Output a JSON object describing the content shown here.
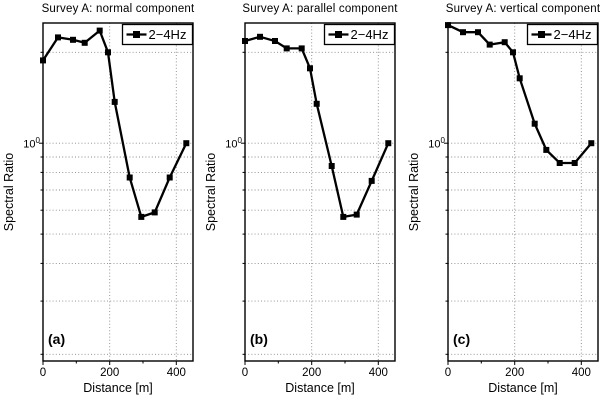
{
  "figure": {
    "background_color": "#ffffff",
    "line_color": "#000000",
    "grid_color": "#8a8a8a",
    "axis_color": "#000000"
  },
  "chart_data": [
    {
      "type": "line",
      "title": "Survey A: normal component",
      "panel_label": "(a)",
      "xlabel": "Distance [m]",
      "ylabel": "Spectral Ratio",
      "yscale": "log",
      "xlim": [
        0,
        450
      ],
      "ylim": [
        0.19,
        2.5
      ],
      "x_ticks": [
        0,
        200,
        400
      ],
      "x_minor_ticks": [
        100,
        300
      ],
      "y_major_tick": {
        "value": 1,
        "label_base": "10",
        "label_exp": "0"
      },
      "y_grid_values": [
        0.2,
        0.3,
        0.4,
        0.5,
        0.6,
        0.7,
        0.8,
        0.9,
        1,
        2
      ],
      "grid": true,
      "legend_position": "top-right",
      "series": [
        {
          "name": "2−4Hz",
          "x": [
            0,
            45,
            90,
            125,
            170,
            195,
            215,
            260,
            295,
            335,
            380,
            430
          ],
          "y": [
            1.88,
            2.24,
            2.2,
            2.15,
            2.36,
            2.0,
            1.37,
            0.77,
            0.57,
            0.59,
            0.77,
            1.0
          ]
        }
      ]
    },
    {
      "type": "line",
      "title": "Survey A: parallel component",
      "panel_label": "(b)",
      "xlabel": "Distance [m]",
      "ylabel": "Spectral Ratio",
      "yscale": "log",
      "xlim": [
        0,
        450
      ],
      "ylim": [
        0.19,
        2.5
      ],
      "x_ticks": [
        0,
        200,
        400
      ],
      "x_minor_ticks": [
        100,
        300
      ],
      "y_major_tick": {
        "value": 1,
        "label_base": "10",
        "label_exp": "0"
      },
      "y_grid_values": [
        0.2,
        0.3,
        0.4,
        0.5,
        0.6,
        0.7,
        0.8,
        0.9,
        1,
        2
      ],
      "grid": true,
      "legend_position": "top-right",
      "series": [
        {
          "name": "2−4Hz",
          "x": [
            0,
            45,
            90,
            125,
            170,
            195,
            215,
            260,
            295,
            335,
            380,
            430
          ],
          "y": [
            2.18,
            2.25,
            2.18,
            2.06,
            2.06,
            1.77,
            1.35,
            0.84,
            0.57,
            0.58,
            0.75,
            1.0
          ]
        }
      ]
    },
    {
      "type": "line",
      "title": "Survey A: vertical component",
      "panel_label": "(c)",
      "xlabel": "Distance [m]",
      "ylabel": "Spectral Ratio",
      "yscale": "log",
      "xlim": [
        0,
        450
      ],
      "ylim": [
        0.19,
        2.5
      ],
      "x_ticks": [
        0,
        200,
        400
      ],
      "x_minor_ticks": [
        100,
        300
      ],
      "y_major_tick": {
        "value": 1,
        "label_base": "10",
        "label_exp": "0"
      },
      "y_grid_values": [
        0.2,
        0.3,
        0.4,
        0.5,
        0.6,
        0.7,
        0.8,
        0.9,
        1,
        2
      ],
      "grid": true,
      "legend_position": "top-right",
      "series": [
        {
          "name": "2−4Hz",
          "x": [
            0,
            45,
            90,
            125,
            170,
            195,
            215,
            260,
            295,
            335,
            380,
            430
          ],
          "y": [
            2.46,
            2.33,
            2.33,
            2.12,
            2.16,
            2.0,
            1.64,
            1.16,
            0.95,
            0.86,
            0.86,
            1.0
          ]
        }
      ]
    }
  ]
}
